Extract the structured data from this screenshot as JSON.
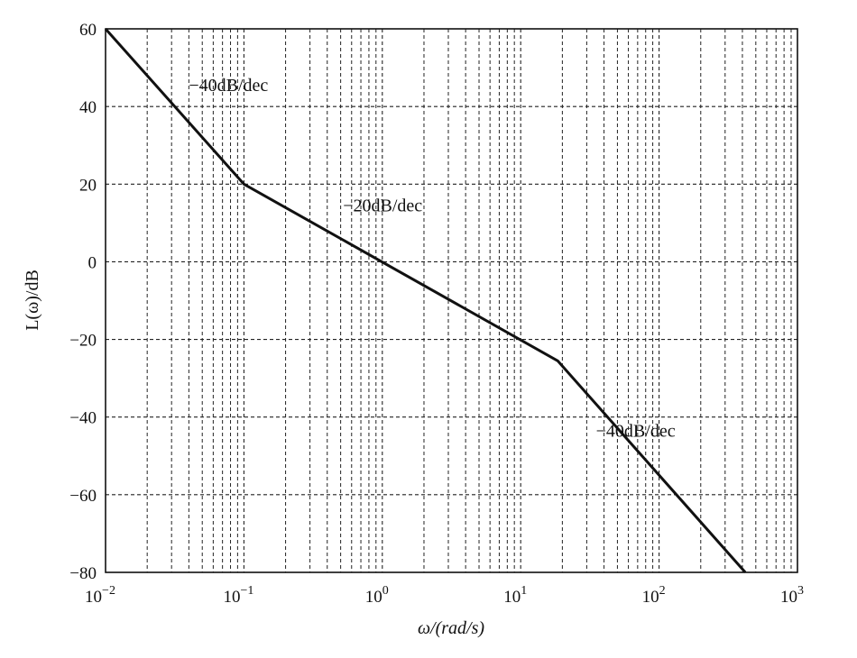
{
  "chart_data": {
    "type": "line",
    "title": "",
    "xlabel": "ω/(rad/s)",
    "ylabel": "L(ω)/dB",
    "xscale": "log",
    "xlim": [
      0.01,
      1000
    ],
    "ylim": [
      -80,
      60
    ],
    "grid": true,
    "x_ticks": [
      {
        "base": "10",
        "exp": "−2"
      },
      {
        "base": "10",
        "exp": "−1"
      },
      {
        "base": "10",
        "exp": "0"
      },
      {
        "base": "10",
        "exp": "1"
      },
      {
        "base": "10",
        "exp": "2"
      },
      {
        "base": "10",
        "exp": "3"
      }
    ],
    "y_ticks": [
      "60",
      "40",
      "20",
      "0",
      "−20",
      "−40",
      "−60",
      "−80"
    ],
    "series": [
      {
        "x": [
          0.01,
          0.1,
          18.5,
          420
        ],
        "y": [
          60,
          20,
          -25.5,
          -80
        ]
      }
    ],
    "annotations": [
      {
        "text": "−40dB/dec",
        "x": 0.04,
        "y": 44
      },
      {
        "text": "−20dB/dec",
        "x": 0.52,
        "y": 13
      },
      {
        "text": "−40dB/dec",
        "x": 35,
        "y": -45
      }
    ]
  }
}
